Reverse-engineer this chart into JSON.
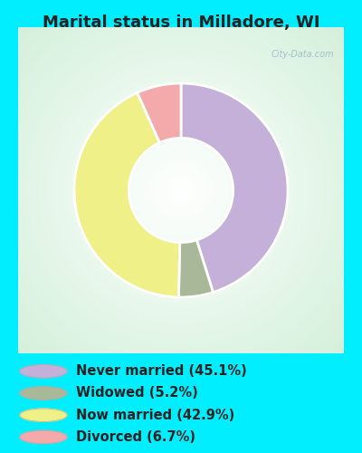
{
  "title": "Marital status in Milladore, WI",
  "slices": [
    45.1,
    5.2,
    42.9,
    6.7
  ],
  "labels": [
    "Never married (45.1%)",
    "Widowed (5.2%)",
    "Now married (42.9%)",
    "Divorced (6.7%)"
  ],
  "colors": [
    "#c4b0d8",
    "#aab89a",
    "#f0f088",
    "#f4aaaa"
  ],
  "legend_colors": [
    "#c4b0d8",
    "#aab89a",
    "#f0f088",
    "#f4aaaa"
  ],
  "start_angle": 90,
  "cyan_bg": "#00eeff",
  "chart_bg": "#e8f4ee",
  "watermark": "City-Data.com",
  "title_fontsize": 13,
  "legend_fontsize": 10.5,
  "donut_width": 0.42
}
